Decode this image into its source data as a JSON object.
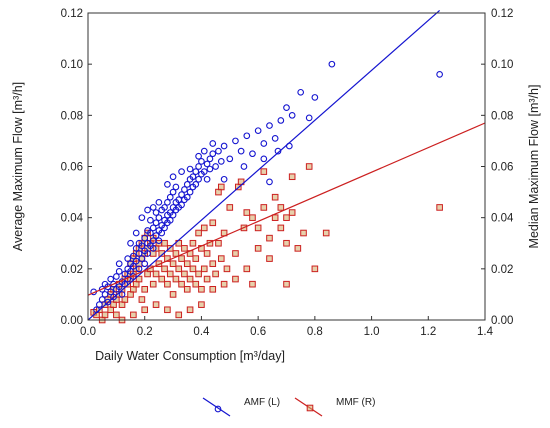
{
  "chart_data": {
    "type": "scatter",
    "xlabel": "Daily Water Consumption [m³/day]",
    "ylabel_left": "Average Maximum Flow [m³/h]",
    "ylabel_right": "Median Maximum Flow [m³/h]",
    "xlim": [
      0,
      1.4
    ],
    "ylim_left": [
      0,
      0.12
    ],
    "ylim_right": [
      0,
      0.12
    ],
    "x_ticks": [
      "0.0",
      "0.2",
      "0.4",
      "0.6",
      "0.8",
      "1.0",
      "1.2",
      "1.4"
    ],
    "y_ticks_left": [
      "0.00",
      "0.02",
      "0.04",
      "0.06",
      "0.08",
      "0.10",
      "0.12"
    ],
    "y_ticks_right": [
      "0.00",
      "0.02",
      "0.04",
      "0.06",
      "0.08",
      "0.10",
      "0.12"
    ],
    "grid": false,
    "legend_position": "bottom-center",
    "series": [
      {
        "name": "AMF (L)",
        "axis": "left",
        "marker": "circle",
        "color": "#1515d0",
        "fit_line": {
          "x": [
            0.0,
            1.24
          ],
          "y": [
            0.0,
            0.121
          ]
        },
        "points": [
          [
            0.02,
            0.011
          ],
          [
            0.03,
            0.004
          ],
          [
            0.04,
            0.006
          ],
          [
            0.05,
            0.008
          ],
          [
            0.05,
            0.012
          ],
          [
            0.06,
            0.01
          ],
          [
            0.06,
            0.014
          ],
          [
            0.07,
            0.007
          ],
          [
            0.07,
            0.013
          ],
          [
            0.08,
            0.011
          ],
          [
            0.08,
            0.016
          ],
          [
            0.09,
            0.009
          ],
          [
            0.09,
            0.014
          ],
          [
            0.1,
            0.012
          ],
          [
            0.1,
            0.017
          ],
          [
            0.11,
            0.013
          ],
          [
            0.11,
            0.019
          ],
          [
            0.12,
            0.015
          ],
          [
            0.12,
            0.01
          ],
          [
            0.13,
            0.018
          ],
          [
            0.13,
            0.014
          ],
          [
            0.14,
            0.02
          ],
          [
            0.14,
            0.016
          ],
          [
            0.14,
            0.024
          ],
          [
            0.15,
            0.019
          ],
          [
            0.15,
            0.022
          ],
          [
            0.16,
            0.017
          ],
          [
            0.16,
            0.025
          ],
          [
            0.16,
            0.021
          ],
          [
            0.17,
            0.023
          ],
          [
            0.17,
            0.028
          ],
          [
            0.18,
            0.02
          ],
          [
            0.18,
            0.026
          ],
          [
            0.18,
            0.03
          ],
          [
            0.19,
            0.024
          ],
          [
            0.19,
            0.029
          ],
          [
            0.2,
            0.027
          ],
          [
            0.2,
            0.032
          ],
          [
            0.2,
            0.022
          ],
          [
            0.21,
            0.03
          ],
          [
            0.21,
            0.035
          ],
          [
            0.21,
            0.026
          ],
          [
            0.22,
            0.029
          ],
          [
            0.22,
            0.034
          ],
          [
            0.22,
            0.039
          ],
          [
            0.23,
            0.031
          ],
          [
            0.23,
            0.036
          ],
          [
            0.23,
            0.028
          ],
          [
            0.24,
            0.033
          ],
          [
            0.24,
            0.038
          ],
          [
            0.24,
            0.042
          ],
          [
            0.25,
            0.035
          ],
          [
            0.25,
            0.04
          ],
          [
            0.25,
            0.031
          ],
          [
            0.26,
            0.037
          ],
          [
            0.26,
            0.043
          ],
          [
            0.26,
            0.034
          ],
          [
            0.27,
            0.039
          ],
          [
            0.27,
            0.044
          ],
          [
            0.27,
            0.036
          ],
          [
            0.28,
            0.041
          ],
          [
            0.28,
            0.046
          ],
          [
            0.28,
            0.038
          ],
          [
            0.29,
            0.042
          ],
          [
            0.29,
            0.048
          ],
          [
            0.29,
            0.039
          ],
          [
            0.3,
            0.044
          ],
          [
            0.3,
            0.05
          ],
          [
            0.3,
            0.041
          ],
          [
            0.31,
            0.046
          ],
          [
            0.31,
            0.052
          ],
          [
            0.31,
            0.043
          ],
          [
            0.32,
            0.047
          ],
          [
            0.32,
            0.044
          ],
          [
            0.33,
            0.049
          ],
          [
            0.33,
            0.045
          ],
          [
            0.34,
            0.051
          ],
          [
            0.34,
            0.047
          ],
          [
            0.35,
            0.053
          ],
          [
            0.35,
            0.048
          ],
          [
            0.36,
            0.055
          ],
          [
            0.36,
            0.05
          ],
          [
            0.37,
            0.056
          ],
          [
            0.37,
            0.052
          ],
          [
            0.38,
            0.058
          ],
          [
            0.38,
            0.053
          ],
          [
            0.39,
            0.06
          ],
          [
            0.39,
            0.055
          ],
          [
            0.4,
            0.057
          ],
          [
            0.4,
            0.062
          ],
          [
            0.41,
            0.058
          ],
          [
            0.42,
            0.061
          ],
          [
            0.42,
            0.055
          ],
          [
            0.43,
            0.063
          ],
          [
            0.43,
            0.059
          ],
          [
            0.44,
            0.065
          ],
          [
            0.45,
            0.06
          ],
          [
            0.46,
            0.066
          ],
          [
            0.47,
            0.062
          ],
          [
            0.48,
            0.068
          ],
          [
            0.5,
            0.063
          ],
          [
            0.52,
            0.07
          ],
          [
            0.54,
            0.066
          ],
          [
            0.56,
            0.072
          ],
          [
            0.58,
            0.065
          ],
          [
            0.6,
            0.074
          ],
          [
            0.62,
            0.069
          ],
          [
            0.64,
            0.076
          ],
          [
            0.66,
            0.071
          ],
          [
            0.68,
            0.078
          ],
          [
            0.7,
            0.083
          ],
          [
            0.72,
            0.08
          ],
          [
            0.75,
            0.089
          ],
          [
            0.78,
            0.079
          ],
          [
            0.8,
            0.087
          ],
          [
            0.86,
            0.1
          ],
          [
            1.24,
            0.096
          ],
          [
            0.11,
            0.022
          ],
          [
            0.15,
            0.03
          ],
          [
            0.17,
            0.034
          ],
          [
            0.19,
            0.04
          ],
          [
            0.21,
            0.043
          ],
          [
            0.23,
            0.044
          ],
          [
            0.25,
            0.046
          ],
          [
            0.28,
            0.053
          ],
          [
            0.3,
            0.056
          ],
          [
            0.33,
            0.058
          ],
          [
            0.36,
            0.059
          ],
          [
            0.39,
            0.064
          ],
          [
            0.41,
            0.066
          ],
          [
            0.44,
            0.069
          ],
          [
            0.48,
            0.055
          ],
          [
            0.55,
            0.06
          ],
          [
            0.62,
            0.063
          ],
          [
            0.67,
            0.066
          ],
          [
            0.71,
            0.068
          ],
          [
            0.64,
            0.054
          ]
        ]
      },
      {
        "name": "MMF (R)",
        "axis": "right",
        "marker": "square",
        "color": "#cc2020",
        "fit_line": {
          "x": [
            0.0,
            1.4
          ],
          "y": [
            0.0097,
            0.077
          ]
        },
        "points": [
          [
            0.02,
            0.003
          ],
          [
            0.03,
            0.002
          ],
          [
            0.04,
            0.004
          ],
          [
            0.05,
            0.0
          ],
          [
            0.06,
            0.006
          ],
          [
            0.06,
            0.002
          ],
          [
            0.07,
            0.008
          ],
          [
            0.08,
            0.004
          ],
          [
            0.08,
            0.01
          ],
          [
            0.09,
            0.006
          ],
          [
            0.09,
            0.012
          ],
          [
            0.1,
            0.008
          ],
          [
            0.1,
            0.002
          ],
          [
            0.11,
            0.01
          ],
          [
            0.11,
            0.014
          ],
          [
            0.12,
            0.006
          ],
          [
            0.12,
            0.012
          ],
          [
            0.13,
            0.016
          ],
          [
            0.13,
            0.008
          ],
          [
            0.14,
            0.014
          ],
          [
            0.14,
            0.018
          ],
          [
            0.15,
            0.01
          ],
          [
            0.15,
            0.016
          ],
          [
            0.15,
            0.022
          ],
          [
            0.16,
            0.012
          ],
          [
            0.16,
            0.018
          ],
          [
            0.16,
            0.024
          ],
          [
            0.17,
            0.014
          ],
          [
            0.17,
            0.02
          ],
          [
            0.17,
            0.026
          ],
          [
            0.18,
            0.016
          ],
          [
            0.18,
            0.022
          ],
          [
            0.18,
            0.028
          ],
          [
            0.19,
            0.008
          ],
          [
            0.19,
            0.024
          ],
          [
            0.19,
            0.03
          ],
          [
            0.2,
            0.012
          ],
          [
            0.2,
            0.026
          ],
          [
            0.2,
            0.032
          ],
          [
            0.21,
            0.018
          ],
          [
            0.21,
            0.028
          ],
          [
            0.21,
            0.034
          ],
          [
            0.22,
            0.02
          ],
          [
            0.22,
            0.03
          ],
          [
            0.23,
            0.014
          ],
          [
            0.23,
            0.026
          ],
          [
            0.23,
            0.032
          ],
          [
            0.24,
            0.018
          ],
          [
            0.24,
            0.028
          ],
          [
            0.25,
            0.022
          ],
          [
            0.25,
            0.03
          ],
          [
            0.26,
            0.016
          ],
          [
            0.26,
            0.026
          ],
          [
            0.27,
            0.02
          ],
          [
            0.27,
            0.03
          ],
          [
            0.28,
            0.014
          ],
          [
            0.28,
            0.024
          ],
          [
            0.29,
            0.018
          ],
          [
            0.29,
            0.028
          ],
          [
            0.3,
            0.01
          ],
          [
            0.3,
            0.022
          ],
          [
            0.31,
            0.016
          ],
          [
            0.31,
            0.026
          ],
          [
            0.32,
            0.02
          ],
          [
            0.32,
            0.03
          ],
          [
            0.33,
            0.014
          ],
          [
            0.33,
            0.024
          ],
          [
            0.34,
            0.018
          ],
          [
            0.34,
            0.028
          ],
          [
            0.35,
            0.012
          ],
          [
            0.35,
            0.022
          ],
          [
            0.36,
            0.016
          ],
          [
            0.36,
            0.026
          ],
          [
            0.37,
            0.02
          ],
          [
            0.37,
            0.03
          ],
          [
            0.38,
            0.014
          ],
          [
            0.38,
            0.024
          ],
          [
            0.39,
            0.018
          ],
          [
            0.39,
            0.034
          ],
          [
            0.4,
            0.012
          ],
          [
            0.4,
            0.028
          ],
          [
            0.41,
            0.02
          ],
          [
            0.41,
            0.036
          ],
          [
            0.42,
            0.016
          ],
          [
            0.42,
            0.026
          ],
          [
            0.43,
            0.03
          ],
          [
            0.44,
            0.022
          ],
          [
            0.44,
            0.038
          ],
          [
            0.45,
            0.018
          ],
          [
            0.46,
            0.03
          ],
          [
            0.47,
            0.024
          ],
          [
            0.48,
            0.034
          ],
          [
            0.49,
            0.02
          ],
          [
            0.5,
            0.044
          ],
          [
            0.52,
            0.026
          ],
          [
            0.53,
            0.052
          ],
          [
            0.55,
            0.036
          ],
          [
            0.56,
            0.02
          ],
          [
            0.58,
            0.04
          ],
          [
            0.6,
            0.028
          ],
          [
            0.62,
            0.044
          ],
          [
            0.64,
            0.032
          ],
          [
            0.66,
            0.048
          ],
          [
            0.68,
            0.036
          ],
          [
            0.7,
            0.04
          ],
          [
            0.72,
            0.056
          ],
          [
            0.74,
            0.028
          ],
          [
            0.76,
            0.034
          ],
          [
            0.78,
            0.06
          ],
          [
            0.8,
            0.02
          ],
          [
            0.84,
            0.034
          ],
          [
            1.24,
            0.044
          ],
          [
            0.46,
            0.05
          ],
          [
            0.47,
            0.052
          ],
          [
            0.54,
            0.054
          ],
          [
            0.62,
            0.058
          ],
          [
            0.6,
            0.036
          ],
          [
            0.66,
            0.04
          ],
          [
            0.68,
            0.044
          ],
          [
            0.7,
            0.03
          ],
          [
            0.72,
            0.042
          ],
          [
            0.56,
            0.042
          ],
          [
            0.58,
            0.014
          ],
          [
            0.64,
            0.024
          ],
          [
            0.52,
            0.016
          ],
          [
            0.48,
            0.014
          ],
          [
            0.44,
            0.012
          ],
          [
            0.4,
            0.006
          ],
          [
            0.36,
            0.004
          ],
          [
            0.32,
            0.002
          ],
          [
            0.28,
            0.004
          ],
          [
            0.24,
            0.006
          ],
          [
            0.2,
            0.004
          ],
          [
            0.16,
            0.002
          ],
          [
            0.12,
            0.0
          ],
          [
            0.7,
            0.014
          ]
        ]
      }
    ]
  }
}
